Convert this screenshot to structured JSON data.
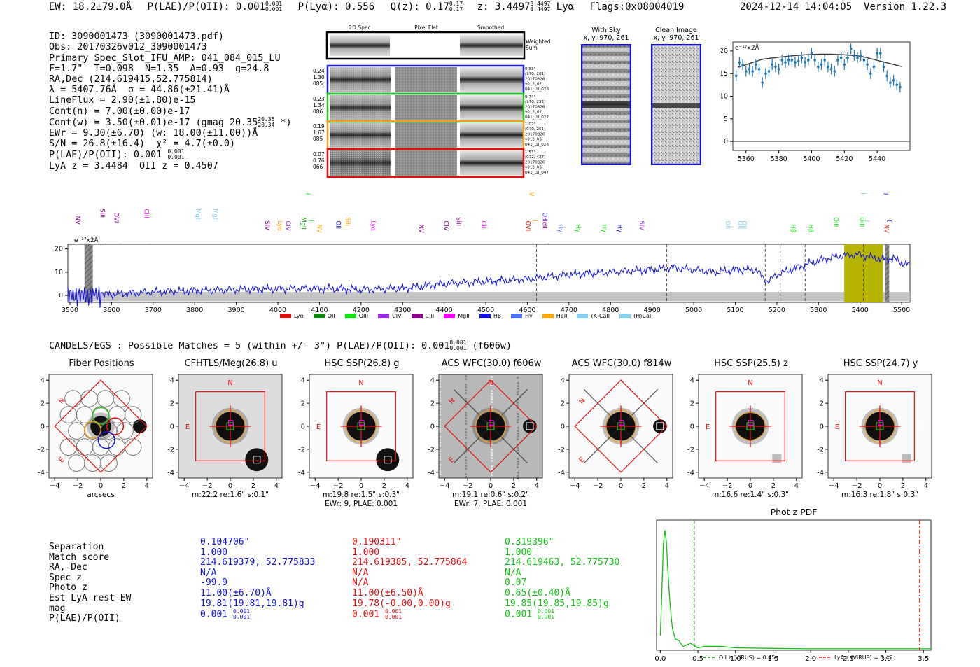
{
  "header": {
    "ew": "EW: 18.2±79.0Å",
    "plae_label": "P(LAE)/P(OII): 0.001",
    "plae_hi": "0.001",
    "plae_lo": "0.001",
    "plya": "P(Lyα): 0.556",
    "qz_label": "Q(z): 0.17",
    "qz_hi": "0.17",
    "qz_lo": "0.17",
    "z_label": "z: 3.4497",
    "z_hi": "3.4497",
    "z_lo": "3.4497",
    "z_line": "Lyα",
    "flags": "Flags:0x08004019",
    "datetime": "2024-12-14 14:04:05",
    "version": "Version 1.22.3"
  },
  "info": {
    "id": "ID: 3090001473 (3090001473.pdf)",
    "obs": "Obs: 20170326v012_3090001473",
    "primary": "Primary Spec_Slot_IFU_AMP: 041_084_015_LU",
    "fit": "F=1.7\"  T=0.098  N=1.35  A=0.93  g=24.8",
    "radec": "RA,Dec (214.619415,52.775814)",
    "lambda": "λ = 5407.76Å  σ = 44.86(±21.41)Å",
    "lineflux": "LineFlux = 2.90(±1.80)e-15",
    "contn": "Cont(n) = 7.00(±0.00)e-17",
    "contw_a": "Cont(w) = 3.50(±0.01)e-17 (gmag 20.35",
    "contw_hi": "20.35",
    "contw_lo": "20.34",
    "contw_b": " *)",
    "ewr": "EWr = 9.30(±6.70) (w: 18.00(±11.00))Å",
    "sn": "S/N = 26.8(±16.4)  χ² = 4.7(±0.0)",
    "plae_a": "P(LAE)/P(OII): 0.001",
    "plae_hi": "0.001",
    "plae_lo": "0.001",
    "lya_z": "LyA z = 3.4484  OII z = 0.4507"
  },
  "spec2d": {
    "col_2d": "2D Spec",
    "col_flat": "Pixel Flat",
    "col_smooth": "Smoothed",
    "weighted_a": "Weighted",
    "weighted_b": "Sum",
    "rows": [
      {
        "l1": "0.24",
        "l2": "1.30",
        "l3": "085",
        "r1": "0.83\"",
        "r2": "(970, 261)",
        "r3": "20170326",
        "r4": "v012_02",
        "r5": "041_LU_028",
        "color": "#1a1ad6"
      },
      {
        "l1": "0.23",
        "l2": "1.34",
        "l3": "086",
        "r1": "0.74\"",
        "r2": "(970, 252)",
        "r3": "20170326",
        "r4": "v012_01",
        "r5": "041_LU_027",
        "color": "#22c422"
      },
      {
        "l1": "0.19",
        "l2": "1.67",
        "l3": "085",
        "r1": "1.02\"",
        "r2": "(970, 261)",
        "r3": "20170326",
        "r4": "v012_03",
        "r5": "041_LU_028",
        "color": "#f0a020"
      },
      {
        "l1": "0.07",
        "l2": "0.76",
        "l3": "066",
        "r1": "1.53\"",
        "r2": "(972, 437)",
        "r3": "20170326",
        "r4": "v012_03",
        "r5": "041_LU_047",
        "color": "#e01010"
      }
    ]
  },
  "sky": {
    "with_sky_title": "With Sky",
    "with_sky_xy": "x, y: 970, 261",
    "clean_title": "Clean Image",
    "clean_xy": "x, y: 970, 261"
  },
  "zoom_chart": {
    "ylabel": "e⁻¹⁷x2Å"
  },
  "full_chart": {
    "ylabel": "e⁻¹⁷x2Å"
  },
  "legend": [
    "Lyα",
    "OII",
    "OIII",
    "CIV",
    "CIII",
    "MgII",
    "Hβ",
    "Hγ",
    "HeII",
    "(K)CaII",
    "(H)CaII"
  ],
  "legend_colors": [
    "#e01010",
    "#118811",
    "#11e011",
    "#9a2be0",
    "#880088",
    "#ff00ff",
    "#1010e0",
    "#4a70ff",
    "#ffa500",
    "#87ceeb",
    "#87ceeb"
  ],
  "chart_data": [
    {
      "type": "scatter",
      "title": "",
      "xlabel": "",
      "ylabel": "e⁻¹⁷x2Å",
      "xlim": [
        5352,
        5460
      ],
      "ylim": [
        -2,
        22
      ],
      "x_ticks": [
        5360,
        5380,
        5400,
        5420,
        5440
      ],
      "y_ticks": [
        0,
        5,
        10,
        15,
        20
      ],
      "points_x": [
        5354,
        5356,
        5358,
        5360,
        5362,
        5364,
        5366,
        5368,
        5370,
        5372,
        5374,
        5376,
        5378,
        5380,
        5382,
        5384,
        5386,
        5388,
        5390,
        5392,
        5394,
        5396,
        5398,
        5400,
        5402,
        5404,
        5406,
        5408,
        5410,
        5412,
        5414,
        5416,
        5418,
        5420,
        5422,
        5424,
        5426,
        5428,
        5430,
        5432,
        5434,
        5436,
        5438,
        5440,
        5442,
        5444,
        5446,
        5448,
        5450,
        5452,
        5454
      ],
      "points_y": [
        14.5,
        17.5,
        17,
        15.5,
        16,
        15.5,
        17,
        16,
        13,
        15,
        15.5,
        17,
        16.5,
        16,
        18,
        17.5,
        18,
        18,
        17.5,
        17.8,
        18.5,
        17.5,
        18,
        19.5,
        18,
        16.5,
        17,
        18,
        16.5,
        16,
        15.5,
        18,
        18.5,
        17,
        18.5,
        20.5,
        19,
        18.5,
        19,
        18,
        17,
        15,
        16.5,
        19.5,
        19.5,
        16.5,
        14.5,
        13,
        13.5,
        12.5,
        12
      ],
      "errors": 1.2,
      "fit": {
        "name": "gaussian+continuum",
        "peak_x": 5408,
        "peak_y": 19.3,
        "base_y": 16.8
      }
    },
    {
      "type": "line",
      "xlabel": "",
      "ylabel": "e⁻¹⁷x2Å",
      "xlim": [
        3495,
        5520
      ],
      "ylim": [
        -3,
        22
      ],
      "x_ticks": [
        3500,
        3600,
        3700,
        3800,
        3900,
        4000,
        4100,
        4200,
        4300,
        4400,
        4500,
        4600,
        4700,
        4800,
        4900,
        5000,
        5100,
        5200,
        5300,
        5400,
        5500
      ],
      "y_ticks": [
        0,
        10,
        20
      ],
      "series": [
        {
          "name": "spectrum",
          "trend_x": [
            3495,
            3550,
            3700,
            3900,
            4100,
            4200,
            4300,
            4400,
            4500,
            4600,
            4700,
            4800,
            4900,
            4950,
            5050,
            5100,
            5150,
            5170,
            5180,
            5200,
            5250,
            5300,
            5350,
            5400,
            5450,
            5480,
            5500,
            5520
          ],
          "trend_y": [
            0,
            0,
            1.5,
            2.5,
            3,
            2.5,
            3,
            5,
            6,
            7,
            9,
            10,
            11,
            12,
            10,
            11,
            11,
            7,
            6,
            9,
            12,
            15,
            17,
            17.5,
            15.5,
            16,
            14,
            13
          ]
        }
      ],
      "dashed_x": [
        4622,
        4935,
        5172,
        5208,
        5268,
        5408
      ],
      "highlight_range": [
        5362,
        5455
      ],
      "hatch_ranges": [
        [
          3535,
          3555
        ],
        [
          5460,
          5470
        ]
      ],
      "line_markers": [
        {
          "label": "NV",
          "x": 3519,
          "row": 1,
          "color": "#800080"
        },
        {
          "label": "SiII",
          "x": 3578,
          "row": 1,
          "color": "#800080"
        },
        {
          "label": "OVI",
          "x": 3612,
          "row": 1,
          "color": "#800080"
        },
        {
          "label": "CIII",
          "x": 3684,
          "row": 1,
          "color": "#ff00ff"
        },
        {
          "label": "MgII",
          "x": 3808,
          "row": 1,
          "color": "#87ceeb"
        },
        {
          "label": "MgII",
          "x": 3850,
          "row": 1,
          "color": "#87ceeb"
        },
        {
          "label": "SIV",
          "x": 3975,
          "row": 2,
          "color": "#800080"
        },
        {
          "label": "Lyα",
          "x": 4005,
          "row": 2,
          "color": "#ffa500"
        },
        {
          "label": "CIV",
          "x": 4025,
          "row": 2,
          "color": "#9a2be0"
        },
        {
          "label": "MgII",
          "x": 4062,
          "row": 2,
          "color": "#118811"
        },
        {
          "label": "OIII",
          "x": 4072,
          "row": 0,
          "color": "#11e011"
        },
        {
          "label": "NV",
          "x": 4100,
          "row": 2,
          "color": "#ffa500"
        },
        {
          "label": "OII",
          "x": 4146,
          "row": 2,
          "color": "#1010e0"
        },
        {
          "label": "SiII",
          "x": 4168,
          "row": 2,
          "color": "#ffa500"
        },
        {
          "label": "Lyα",
          "x": 4230,
          "row": 2,
          "color": "#ff00ff"
        },
        {
          "label": "NV",
          "x": 4345,
          "row": 2,
          "color": "#800080"
        },
        {
          "label": "CIV",
          "x": 4405,
          "row": 2,
          "color": "#800080"
        },
        {
          "label": "SiII",
          "x": 4435,
          "row": 2,
          "color": "#800080"
        },
        {
          "label": "CII",
          "x": 4495,
          "row": 2,
          "color": "#ff00ff"
        },
        {
          "label": "SiIV",
          "x": 4610,
          "row": 0,
          "color": "#ffa500"
        },
        {
          "label": "OVI",
          "x": 4602,
          "row": 2,
          "color": "#e01010"
        },
        {
          "label": "OII",
          "x": 4642,
          "row": 1,
          "color": "#1010e0"
        },
        {
          "label": "HeII",
          "x": 4642,
          "row": 2,
          "color": "#880088"
        },
        {
          "label": "Hγ",
          "x": 4680,
          "row": 2,
          "color": "#4a70ff"
        },
        {
          "label": "Hγ",
          "x": 4722,
          "row": 2,
          "color": "#11e011"
        },
        {
          "label": "Hγ",
          "x": 4785,
          "row": 2,
          "color": "#11e011"
        },
        {
          "label": "Hγ",
          "x": 4822,
          "row": 2,
          "color": "#1010e0"
        },
        {
          "label": "SIV",
          "x": 4875,
          "row": 2,
          "color": "#9a2be0"
        },
        {
          "label": "OII",
          "x": 5082,
          "row": 2,
          "color": "#87ceeb"
        },
        {
          "label": "OII",
          "x": 5112,
          "row": 2,
          "color": "#87ceeb"
        },
        {
          "label": "OII",
          "x": 5122,
          "row": 2,
          "color": "#87ceeb"
        },
        {
          "label": "Hβ",
          "x": 5240,
          "row": 2,
          "color": "#11e011"
        },
        {
          "label": "Hβ",
          "x": 5282,
          "row": 2,
          "color": "#11e011"
        },
        {
          "label": "OIII",
          "x": 5342,
          "row": 2,
          "color": "#11e011"
        },
        {
          "label": "(H)CaII",
          "x": 5408,
          "row": 0,
          "color": "#87ceeb"
        },
        {
          "label": "OIII",
          "x": 5405,
          "row": 2,
          "color": "#11e011"
        },
        {
          "label": "OIII",
          "x": 5462,
          "row": 0,
          "color": "#1010e0"
        },
        {
          "label": "NV",
          "x": 5464,
          "row": 2,
          "color": "#e01010"
        }
      ]
    },
    {
      "type": "line",
      "title": "Phot z PDF",
      "xlabel": "",
      "ylabel": "",
      "xlim": [
        -0.05,
        3.6
      ],
      "ylim": [
        0,
        1
      ],
      "x_ticks": [
        0.0,
        0.5,
        1.0,
        1.5,
        2.0,
        2.5,
        3.0,
        3.5
      ],
      "x": [
        0.0,
        0.02,
        0.04,
        0.06,
        0.08,
        0.1,
        0.12,
        0.14,
        0.16,
        0.2,
        0.25,
        0.3,
        0.4,
        0.5,
        0.6,
        0.8,
        1.0,
        1.5,
        2.0,
        2.5,
        3.0,
        3.5,
        3.6
      ],
      "y": [
        0.12,
        0.45,
        0.85,
        0.97,
        0.88,
        0.65,
        0.45,
        0.3,
        0.18,
        0.09,
        0.06,
        0.05,
        0.04,
        0.03,
        0.03,
        0.025,
        0.02,
        0.015,
        0.012,
        0.012,
        0.012,
        0.012,
        0.012
      ],
      "vlines": [
        {
          "label": "OII z (VIRUS) = 0.45",
          "x": 0.45,
          "color": "#118811"
        },
        {
          "label": "LyA z (VIRUS) = 3.45",
          "x": 3.45,
          "color": "#e01010"
        }
      ]
    }
  ],
  "candels": {
    "heading_a": "CANDELS/EGS : Possible Matches = 5 (within +/- 3\")  P(LAE)/P(OII): 0.001",
    "heading_hi": "0.001",
    "heading_lo": "0.001",
    "heading_b": " (f606w)"
  },
  "cutouts": [
    {
      "title": "Fiber Positions",
      "xlabel": "arcsecs",
      "cap1": "",
      "cap2": ""
    },
    {
      "title": "CFHTLS/Meg(26.8) u",
      "xlabel": "",
      "cap1": "m:22.2  re:1.6\"  s:0.1\"",
      "cap2": ""
    },
    {
      "title": "HSC SSP(26.8) g",
      "xlabel": "",
      "cap1": "m:19.8   re:1.5\"  s:0.3\"",
      "cap2": "EWr: 9, PLAE: 0.001"
    },
    {
      "title": "ACS WFC(30.0) f606w",
      "xlabel": "",
      "cap1": "m:19.1   re:0.6\"  s:0.2\"",
      "cap2": "EWr: 7, PLAE: 0.001"
    },
    {
      "title": "ACS WFC(30.0) f814w",
      "xlabel": "",
      "cap1": "",
      "cap2": ""
    },
    {
      "title": "HSC SSP(25.5) z",
      "xlabel": "",
      "cap1": "m:16.6  re:1.4\"  s:0.3\"",
      "cap2": ""
    },
    {
      "title": "HSC SSP(24.7) y",
      "xlabel": "",
      "cap1": "m:16.3  re:1.8\"  s:0.3\"",
      "cap2": ""
    }
  ],
  "cutout_ticks": [
    "4",
    "2",
    "0",
    "-2",
    "-4"
  ],
  "cutout_xticks": [
    "−4",
    "−2",
    "0",
    "2",
    "4"
  ],
  "compass": {
    "n": "N",
    "e": "E"
  },
  "table": {
    "labels": [
      "Separation",
      "Match score",
      "RA, Dec",
      "Spec z",
      "Photo z",
      "Est LyA rest-EW",
      "mag",
      "P(LAE)/P(OII)"
    ],
    "cols": [
      {
        "color": "#1010e0",
        "vals": [
          "0.104706\"",
          "1.000",
          "214.619379, 52.775833",
          "N/A",
          "-99.9",
          "11.00(±6.70)Å",
          "19.81(19.81,19.81)g",
          "0.001"
        ],
        "hi": "0.001",
        "lo": "0.001"
      },
      {
        "color": "#e01010",
        "vals": [
          "0.190311\"",
          "1.000",
          "214.619385, 52.775864",
          "N/A",
          "N/A",
          "11.00(±6.50)Å",
          "19.78(-0.00,0.00)g",
          "0.001"
        ],
        "hi": "0.001",
        "lo": "0.001"
      },
      {
        "color": "#11c011",
        "vals": [
          "0.319396\"",
          "1.000",
          "214.619463, 52.775730",
          "N/A",
          "0.07",
          "0.65(±0.40)Å",
          "19.85(19.85,19.85)g",
          "0.001"
        ],
        "hi": "0.001",
        "lo": "0.001"
      }
    ]
  }
}
